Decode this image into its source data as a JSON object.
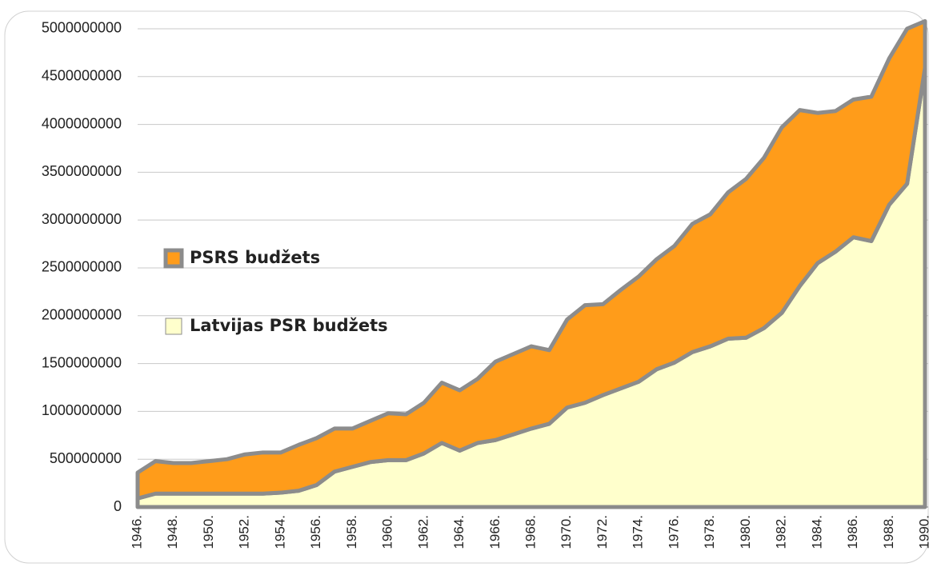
{
  "chart_data": {
    "type": "stacked_area",
    "categories": [
      "1946.",
      null,
      "1948.",
      null,
      "1950.",
      null,
      "1952.",
      null,
      "1954.",
      null,
      "1956.",
      null,
      "1958.",
      null,
      "1960.",
      null,
      "1962.",
      null,
      "1964.",
      null,
      "1966.",
      null,
      "1968.",
      null,
      "1970.",
      null,
      "1972.",
      null,
      "1974.",
      null,
      "1976.",
      null,
      "1978.",
      null,
      "1980.",
      null,
      "1982.",
      null,
      "1984.",
      null,
      "1986.",
      null,
      "1988.",
      null,
      "1990."
    ],
    "series": [
      {
        "name": "Latvijas PSR budžets",
        "color": "#ffffcc",
        "values": [
          90000000,
          140000000,
          140000000,
          140000000,
          140000000,
          140000000,
          140000000,
          140000000,
          150000000,
          170000000,
          230000000,
          370000000,
          420000000,
          470000000,
          490000000,
          490000000,
          560000000,
          670000000,
          590000000,
          670000000,
          700000000,
          760000000,
          820000000,
          870000000,
          1040000000,
          1090000000,
          1170000000,
          1240000000,
          1310000000,
          1440000000,
          1510000000,
          1620000000,
          1680000000,
          1760000000,
          1770000000,
          1870000000,
          2030000000,
          2310000000,
          2550000000,
          2670000000,
          2820000000,
          2780000000,
          3160000000,
          3380000000,
          4590000000
        ]
      },
      {
        "name": "PSRS budžets",
        "color": "#ff9c1a",
        "values": [
          270000000,
          340000000,
          320000000,
          320000000,
          340000000,
          360000000,
          410000000,
          430000000,
          420000000,
          480000000,
          490000000,
          450000000,
          400000000,
          430000000,
          490000000,
          480000000,
          530000000,
          630000000,
          630000000,
          670000000,
          820000000,
          840000000,
          860000000,
          770000000,
          920000000,
          1020000000,
          950000000,
          1030000000,
          1100000000,
          1150000000,
          1220000000,
          1340000000,
          1380000000,
          1530000000,
          1660000000,
          1780000000,
          1940000000,
          1840000000,
          1570000000,
          1470000000,
          1440000000,
          1510000000,
          1530000000,
          1620000000,
          490000000
        ]
      }
    ],
    "ylim": [
      0,
      5100000000
    ],
    "yticks": [
      0,
      500000000,
      1000000000,
      1500000000,
      2000000000,
      2500000000,
      3000000000,
      3500000000,
      4000000000,
      4500000000,
      5000000000
    ],
    "grid": true,
    "legend": "left",
    "outline_color": "#8c8c8c"
  }
}
